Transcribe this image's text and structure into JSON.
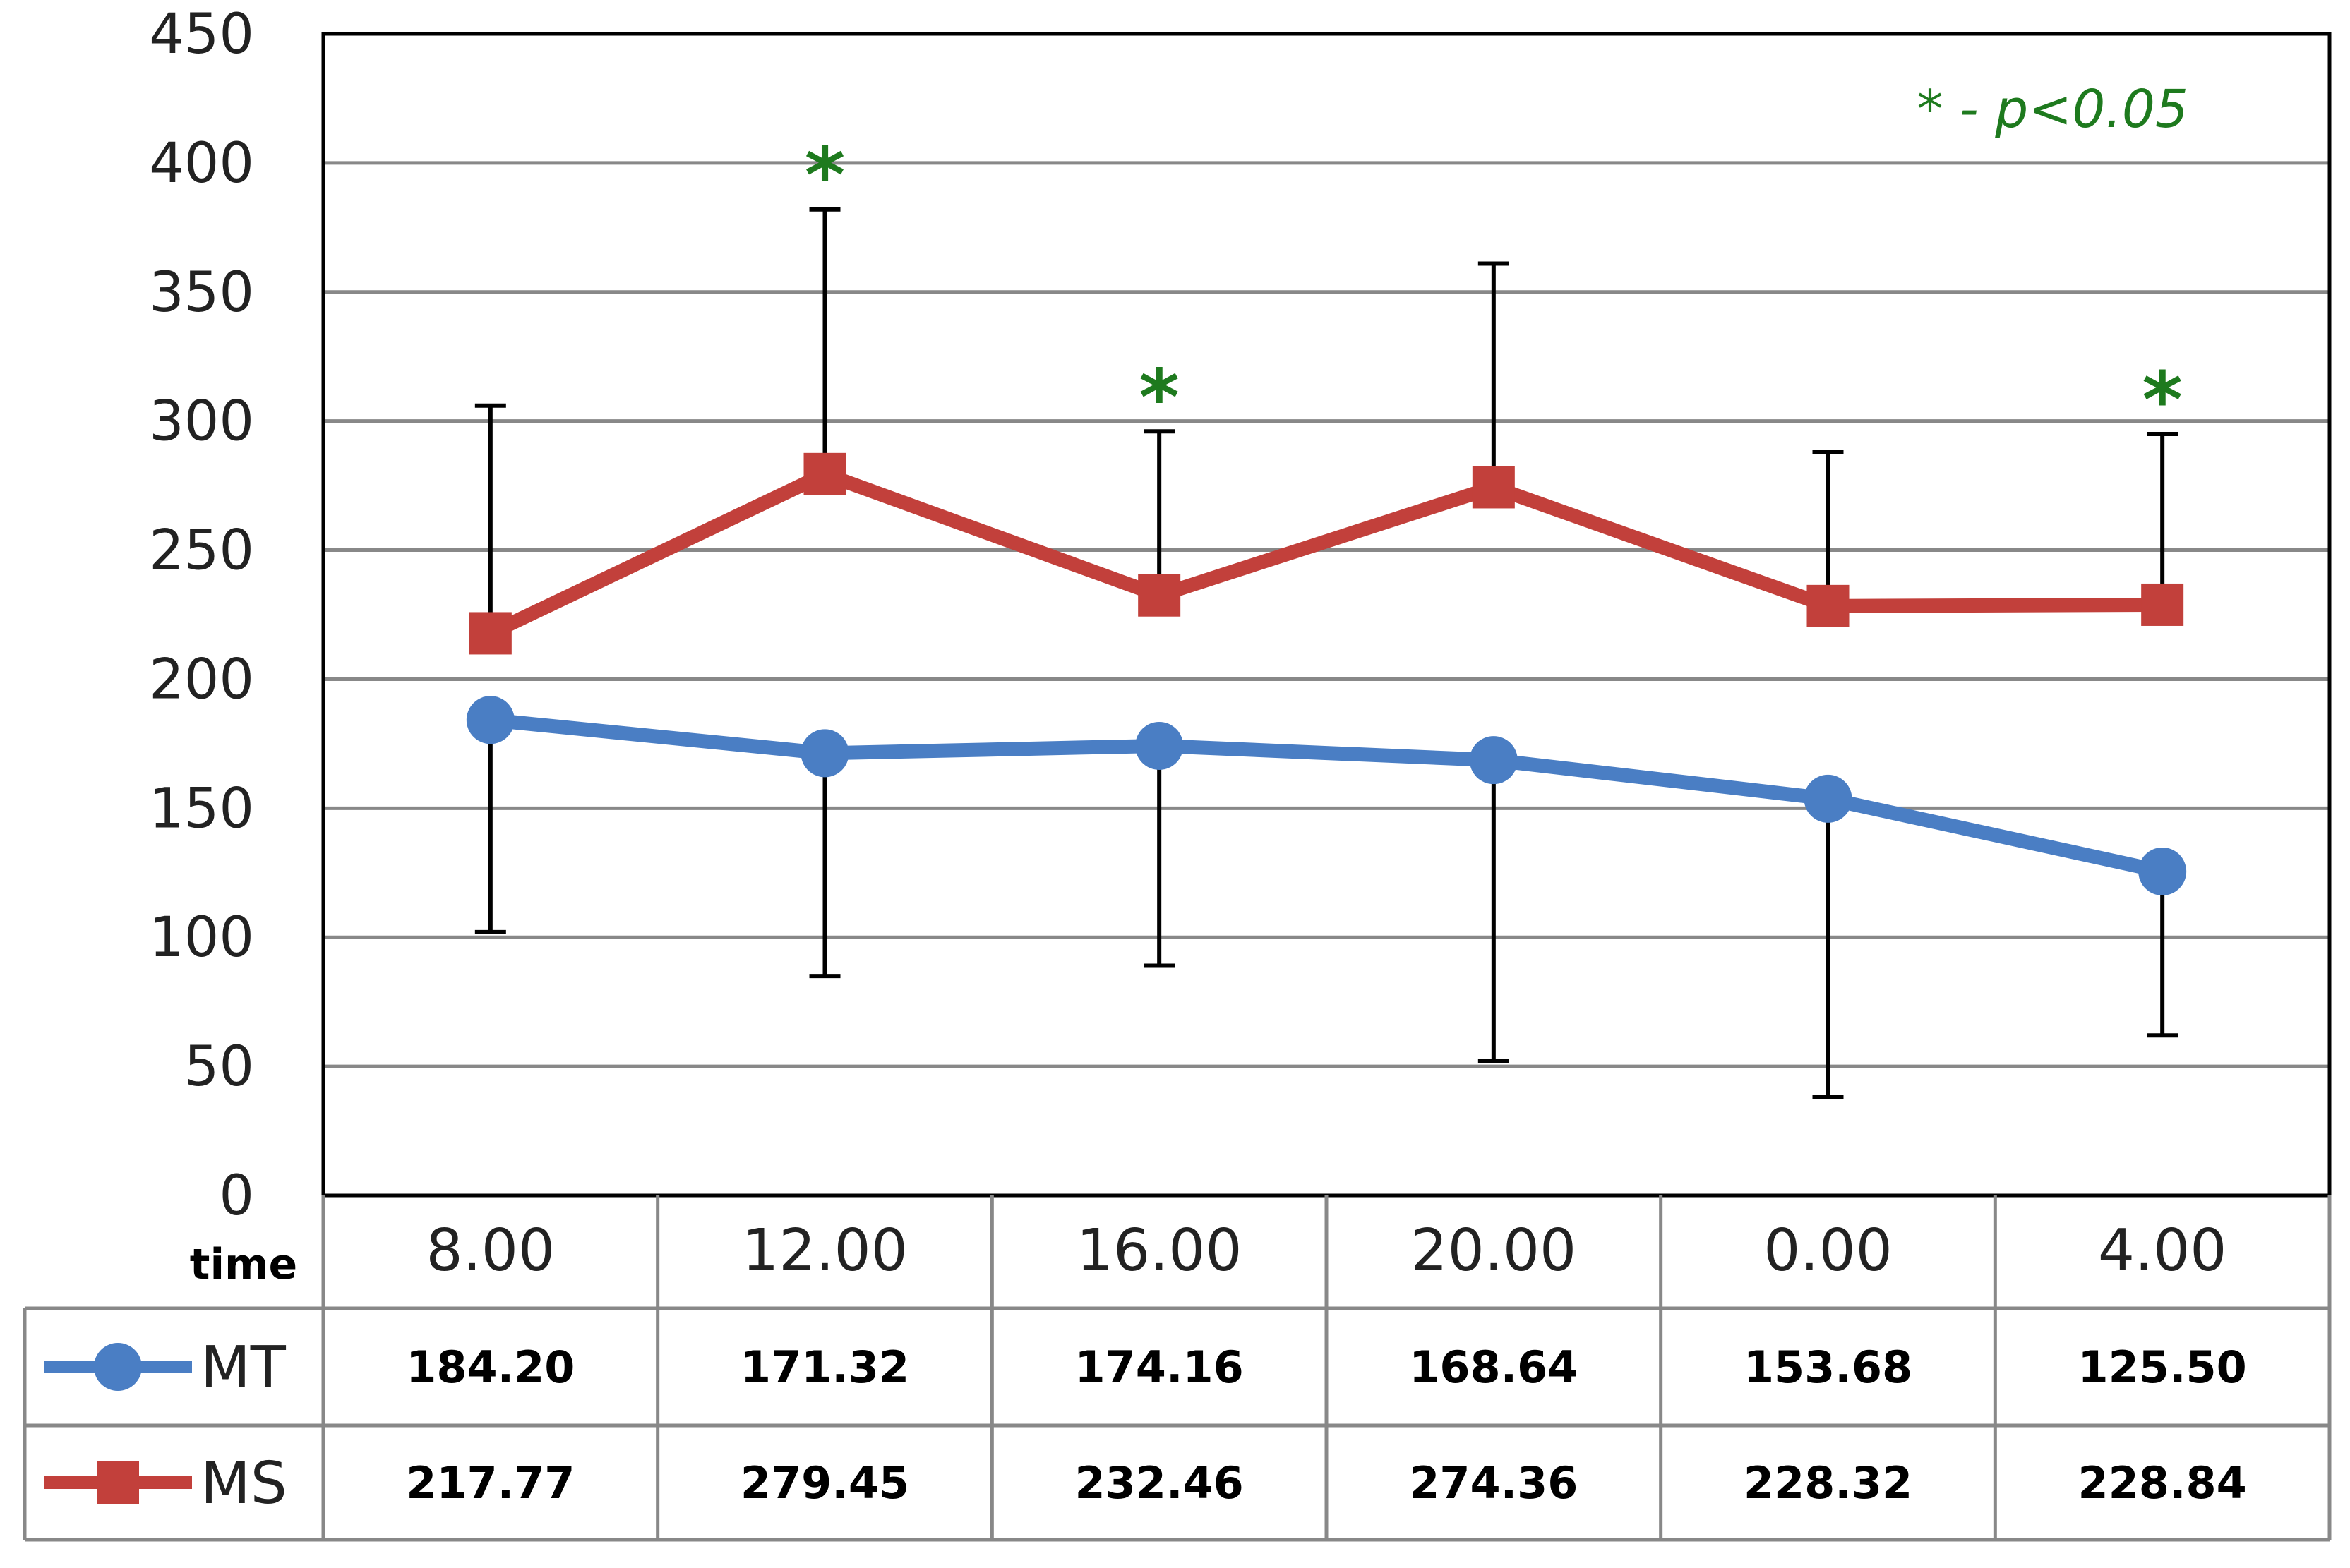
{
  "chart_data": {
    "type": "line",
    "table_header_label": "time",
    "categories": [
      "8.00",
      "12.00",
      "16.00",
      "20.00",
      "0.00",
      "4.00"
    ],
    "ylim": [
      0,
      450
    ],
    "yticks": [
      0,
      50,
      100,
      150,
      200,
      250,
      300,
      350,
      400,
      450
    ],
    "grid": true,
    "series": [
      {
        "name": "MT",
        "color": "#4a7ec4",
        "marker": "circle",
        "values": [
          184.2,
          171.32,
          174.16,
          168.64,
          153.68,
          125.5
        ],
        "value_labels": [
          "184.20",
          "171.32",
          "174.16",
          "168.64",
          "153.68",
          "125.50"
        ],
        "error_lower": [
          102,
          85,
          89,
          52,
          38,
          62
        ]
      },
      {
        "name": "MS",
        "color": "#c2403b",
        "marker": "square",
        "values": [
          217.77,
          279.45,
          232.46,
          274.36,
          228.32,
          228.84
        ],
        "value_labels": [
          "217.77",
          "279.45",
          "232.46",
          "274.36",
          "228.32",
          "228.84"
        ],
        "error_upper": [
          306,
          382,
          296,
          361,
          288,
          295
        ]
      }
    ],
    "significance": {
      "symbol": "*",
      "color": "#1e7a1e",
      "categories": [
        "12.00",
        "16.00",
        "4.00"
      ],
      "note": "* - p<0.05"
    }
  }
}
